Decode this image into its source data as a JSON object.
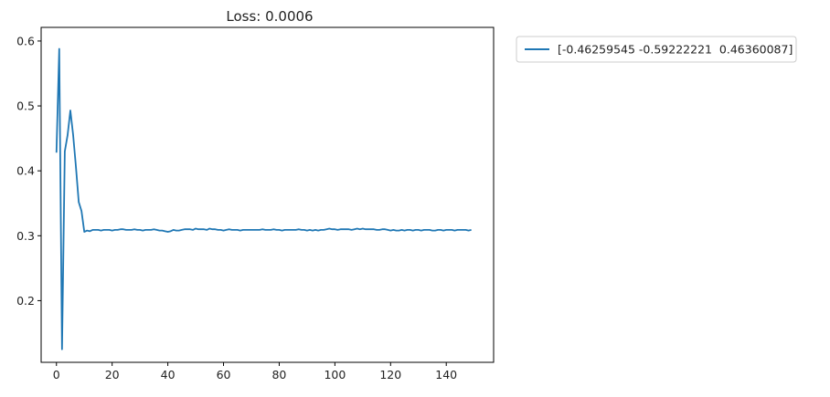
{
  "chart_data": {
    "type": "line",
    "title": "Loss: 0.0006",
    "xlabel": "",
    "ylabel": "",
    "xlim": [
      -5.5,
      157
    ],
    "ylim": [
      0.105,
      0.621
    ],
    "xticks": [
      0,
      20,
      40,
      60,
      80,
      100,
      120,
      140
    ],
    "yticks": [
      0.2,
      0.3,
      0.4,
      0.5,
      0.6
    ],
    "grid": false,
    "legend_position": "outside-top-right",
    "series": [
      {
        "name": "[-0.46259545 -0.59222221  0.46360087]",
        "color": "#1f77b4",
        "x": [
          0,
          1,
          2,
          3,
          4,
          5,
          6,
          7,
          8,
          9,
          10,
          11,
          12,
          13,
          14,
          15,
          16,
          17,
          18,
          19,
          20,
          21,
          22,
          23,
          24,
          25,
          26,
          27,
          28,
          29,
          30,
          31,
          32,
          33,
          34,
          35,
          36,
          37,
          38,
          39,
          40,
          41,
          42,
          43,
          44,
          45,
          46,
          47,
          48,
          49,
          50,
          51,
          52,
          53,
          54,
          55,
          56,
          57,
          58,
          59,
          60,
          61,
          62,
          63,
          64,
          65,
          66,
          67,
          68,
          69,
          70,
          71,
          72,
          73,
          74,
          75,
          76,
          77,
          78,
          79,
          80,
          81,
          82,
          83,
          84,
          85,
          86,
          87,
          88,
          89,
          90,
          91,
          92,
          93,
          94,
          95,
          96,
          97,
          98,
          99,
          100,
          101,
          102,
          103,
          104,
          105,
          106,
          107,
          108,
          109,
          110,
          111,
          112,
          113,
          114,
          115,
          116,
          117,
          118,
          119,
          120,
          121,
          122,
          123,
          124,
          125,
          126,
          127,
          128,
          129,
          130,
          131,
          132,
          133,
          134,
          135,
          136,
          137,
          138,
          139,
          140,
          141,
          142,
          143,
          144,
          145,
          146,
          147,
          148,
          149
        ],
        "y": [
          0.428,
          0.588,
          0.125,
          0.43,
          0.455,
          0.493,
          0.455,
          0.406,
          0.352,
          0.338,
          0.306,
          0.308,
          0.307,
          0.309,
          0.309,
          0.309,
          0.308,
          0.309,
          0.309,
          0.309,
          0.308,
          0.309,
          0.309,
          0.31,
          0.31,
          0.309,
          0.309,
          0.309,
          0.31,
          0.309,
          0.309,
          0.308,
          0.309,
          0.309,
          0.309,
          0.31,
          0.309,
          0.308,
          0.308,
          0.307,
          0.306,
          0.307,
          0.309,
          0.308,
          0.308,
          0.309,
          0.31,
          0.31,
          0.31,
          0.309,
          0.311,
          0.31,
          0.31,
          0.31,
          0.309,
          0.311,
          0.31,
          0.31,
          0.309,
          0.309,
          0.308,
          0.309,
          0.31,
          0.309,
          0.309,
          0.309,
          0.308,
          0.309,
          0.309,
          0.309,
          0.309,
          0.309,
          0.309,
          0.309,
          0.31,
          0.309,
          0.309,
          0.309,
          0.31,
          0.309,
          0.309,
          0.308,
          0.309,
          0.309,
          0.309,
          0.309,
          0.309,
          0.31,
          0.309,
          0.309,
          0.308,
          0.309,
          0.308,
          0.309,
          0.308,
          0.309,
          0.309,
          0.31,
          0.311,
          0.31,
          0.31,
          0.309,
          0.31,
          0.31,
          0.31,
          0.31,
          0.309,
          0.31,
          0.311,
          0.31,
          0.311,
          0.31,
          0.31,
          0.31,
          0.31,
          0.309,
          0.309,
          0.31,
          0.31,
          0.309,
          0.308,
          0.309,
          0.308,
          0.308,
          0.309,
          0.308,
          0.309,
          0.309,
          0.308,
          0.309,
          0.309,
          0.308,
          0.309,
          0.309,
          0.309,
          0.308,
          0.308,
          0.309,
          0.309,
          0.308,
          0.309,
          0.309,
          0.309,
          0.308,
          0.309,
          0.309,
          0.309,
          0.309,
          0.308,
          0.309
        ]
      }
    ]
  }
}
